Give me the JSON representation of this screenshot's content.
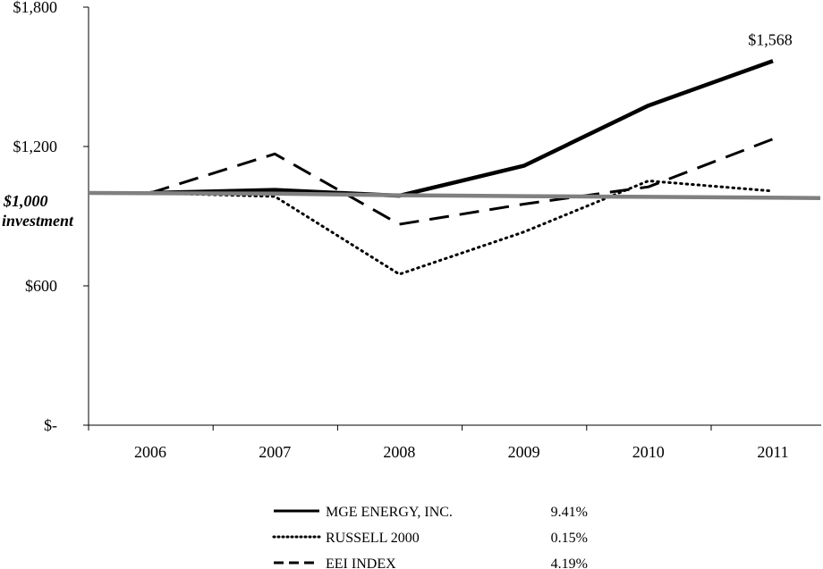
{
  "chart_data": {
    "type": "line",
    "title": "",
    "xlabel": "",
    "ylabel": "",
    "categories": [
      "2006",
      "2007",
      "2008",
      "2009",
      "2010",
      "2011"
    ],
    "ylim": [
      0,
      1800
    ],
    "y_ticks": [
      {
        "value": 0,
        "label": "$-"
      },
      {
        "value": 600,
        "label": "$600"
      },
      {
        "value": 1200,
        "label": "$1,200"
      },
      {
        "value": 1800,
        "label": "$1,800"
      }
    ],
    "investment_label": {
      "value": 1000,
      "line1": "$1,000",
      "line2": "investment"
    },
    "end_label": "$1,568",
    "series": [
      {
        "name": "MGE ENERGY, INC.",
        "rate": "9.41%",
        "style": "solid-thick",
        "color": "#000000",
        "values": [
          1000,
          1013,
          988,
          1117,
          1376,
          1568
        ]
      },
      {
        "name": "RUSSELL 2000",
        "rate": "0.15%",
        "style": "dotted",
        "color": "#000000",
        "values": [
          1000,
          985,
          650,
          832,
          1052,
          1008
        ]
      },
      {
        "name": "EEI INDEX",
        "rate": "4.19%",
        "style": "dashed",
        "color": "#000000",
        "values": [
          1000,
          1168,
          865,
          952,
          1026,
          1232
        ]
      },
      {
        "name": "",
        "rate": "",
        "style": "gray-baseline",
        "color": "#808080",
        "values": [
          1000,
          997,
          990,
          986,
          983,
          978
        ]
      }
    ]
  }
}
